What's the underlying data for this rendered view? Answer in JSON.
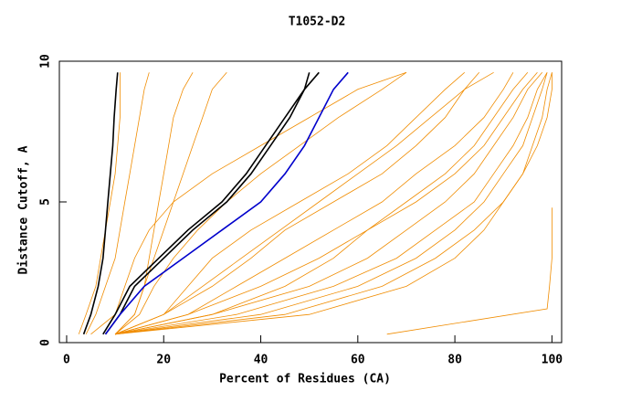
{
  "chart_data": {
    "type": "line",
    "title": "T1052-D2",
    "x_label": "Percent of Residues (CA)",
    "y_label": "Distance Cutoff, A",
    "xlim": [
      -1.5,
      102
    ],
    "ylim": [
      0,
      10
    ],
    "xticks": [
      0,
      20,
      40,
      60,
      80,
      100
    ],
    "yticks": [
      0,
      5,
      10
    ],
    "series": [
      {
        "color": "#f08c00",
        "x": [
          2.5,
          4,
          6,
          7,
          8,
          9,
          10,
          10.5,
          11,
          11,
          11
        ],
        "values": [
          0.3,
          1,
          2,
          3,
          4,
          5,
          6,
          7,
          8,
          9,
          9.6
        ]
      },
      {
        "color": "#f08c00",
        "x": [
          4,
          6,
          8,
          10,
          11,
          12,
          13,
          14,
          15,
          16,
          17
        ],
        "values": [
          0.3,
          1,
          2,
          3,
          4,
          5,
          6,
          7,
          8,
          9,
          9.6
        ]
      },
      {
        "color": "#f08c00",
        "x": [
          10,
          14,
          16,
          17,
          18,
          19,
          20,
          21,
          22,
          24,
          26
        ],
        "values": [
          0.3,
          1,
          2,
          3,
          4,
          5,
          6,
          7,
          8,
          9,
          9.6
        ]
      },
      {
        "color": "#f08c00",
        "x": [
          10,
          20,
          30,
          38,
          45,
          55,
          65,
          72,
          78,
          82,
          85
        ],
        "values": [
          0.3,
          1,
          2,
          3,
          4,
          5,
          6,
          7,
          8,
          9,
          9.6
        ]
      },
      {
        "color": "#f08c00",
        "x": [
          10,
          30,
          50,
          62,
          70,
          78,
          84,
          88,
          92,
          95,
          98
        ],
        "values": [
          0.3,
          1,
          2,
          3,
          4,
          5,
          6,
          7,
          8,
          9,
          9.6
        ]
      },
      {
        "color": "#f08c00",
        "x": [
          10,
          40,
          60,
          72,
          80,
          86,
          90,
          94,
          96,
          98,
          99
        ],
        "values": [
          0.3,
          1,
          2,
          3,
          4,
          5,
          6,
          7,
          8,
          9,
          9.6
        ]
      },
      {
        "color": "#f08c00",
        "x": [
          10,
          50,
          70,
          80,
          86,
          90,
          94,
          96,
          98,
          99,
          100
        ],
        "values": [
          0.3,
          1,
          2,
          3,
          4,
          5,
          6,
          7,
          8,
          9,
          9.6
        ]
      },
      {
        "color": "#f08c00",
        "x": [
          10,
          35,
          55,
          68,
          76,
          84,
          88,
          92,
          95,
          97,
          99
        ],
        "values": [
          0.3,
          1,
          2,
          3,
          4,
          5,
          6,
          7,
          8,
          9,
          9.6
        ]
      },
      {
        "color": "#f08c00",
        "x": [
          10,
          25,
          40,
          52,
          62,
          72,
          80,
          86,
          90,
          94,
          97
        ],
        "values": [
          0.3,
          1,
          2,
          3,
          4,
          5,
          6,
          7,
          8,
          9,
          9.6
        ]
      },
      {
        "color": "#f08c00",
        "x": [
          10,
          20,
          25,
          30,
          38,
          48,
          58,
          66,
          72,
          78,
          82
        ],
        "values": [
          0.3,
          1,
          2,
          3,
          4,
          5,
          6,
          7,
          8,
          9,
          9.6
        ]
      },
      {
        "color": "#f08c00",
        "x": [
          10,
          15,
          18,
          22,
          27,
          33,
          40,
          48,
          56,
          65,
          70
        ],
        "values": [
          0.3,
          1,
          2,
          3,
          4,
          5,
          6,
          7,
          8,
          9,
          9.6
        ]
      },
      {
        "color": "#f08c00",
        "x": [
          10,
          14,
          16,
          18,
          20,
          22,
          24,
          26,
          28,
          30,
          33
        ],
        "values": [
          0.3,
          1,
          2,
          3,
          4,
          5,
          6,
          7,
          8,
          9,
          9.6
        ]
      },
      {
        "color": "#f08c00",
        "x": [
          10,
          25,
          35,
          45,
          55,
          65,
          72,
          80,
          86,
          90,
          92
        ],
        "values": [
          0.3,
          1,
          2,
          3,
          4,
          5,
          6,
          7,
          8,
          9,
          9.6
        ]
      },
      {
        "color": "#f08c00",
        "x": [
          10,
          45,
          65,
          76,
          84,
          90,
          94,
          97,
          99,
          100,
          100
        ],
        "values": [
          0.3,
          1,
          2,
          3,
          4,
          5,
          6,
          7,
          8,
          9,
          9.6
        ]
      },
      {
        "color": "#f08c00",
        "x": [
          10,
          30,
          45,
          55,
          62,
          70,
          78,
          84,
          88,
          92,
          95
        ],
        "values": [
          0.3,
          1,
          2,
          3,
          4,
          5,
          6,
          7,
          8,
          9,
          9.6
        ]
      },
      {
        "color": "#f08c00",
        "x": [
          5,
          10,
          12,
          14,
          17,
          22,
          30,
          40,
          50,
          60,
          70
        ],
        "values": [
          0.3,
          1,
          2,
          3,
          4,
          5,
          6,
          7,
          8,
          9,
          9.6
        ]
      },
      {
        "color": "#f08c00",
        "x": [
          10,
          20,
          28,
          36,
          44,
          52,
          60,
          68,
          75,
          82,
          88
        ],
        "values": [
          0.3,
          1,
          2,
          3,
          4,
          5,
          6,
          7,
          8,
          9,
          9.6
        ]
      },
      {
        "color": "#f08c00",
        "x": [
          66,
          99,
          99.5,
          100,
          100
        ],
        "values": [
          0.3,
          1.2,
          2,
          3,
          4.8
        ]
      },
      {
        "color": "#000000",
        "x": [
          3.5,
          5,
          6.5,
          7.5,
          8,
          8.5,
          9,
          9.5,
          9.8,
          10.2,
          10.5
        ],
        "values": [
          0.3,
          1,
          2,
          3,
          4,
          5,
          6,
          7,
          8,
          9,
          9.6
        ]
      },
      {
        "color": "#000000",
        "x": [
          7.5,
          10,
          13,
          19,
          25,
          32,
          37,
          41,
          45,
          49,
          52
        ],
        "values": [
          0.3,
          1,
          2,
          3,
          4,
          5,
          6,
          7,
          8,
          9,
          9.6
        ]
      },
      {
        "color": "#000000",
        "x": [
          8,
          11,
          14,
          20,
          26,
          33,
          38,
          42,
          46,
          49,
          50
        ],
        "values": [
          0.3,
          1,
          2,
          3,
          4,
          5,
          6,
          7,
          8,
          9,
          9.6
        ]
      },
      {
        "color": "#0000cc",
        "x": [
          8,
          11,
          16,
          24,
          32,
          40,
          45,
          49,
          52,
          55,
          58
        ],
        "values": [
          0.3,
          1,
          2,
          3,
          4,
          5,
          6,
          7,
          8,
          9,
          9.6
        ]
      }
    ]
  }
}
